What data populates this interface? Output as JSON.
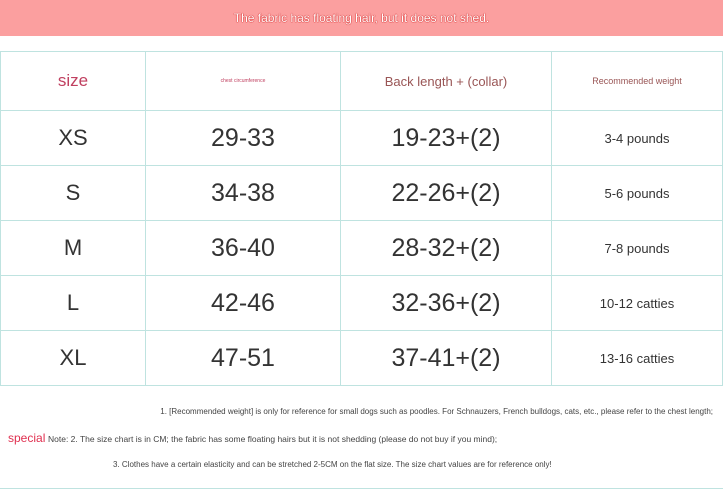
{
  "banner": "The fabric has floating hair, but it does not shed.",
  "headers": [
    "size",
    "chest circumference",
    "Back length + (collar)",
    "Recommended weight"
  ],
  "rows": [
    [
      "XS",
      "29-33",
      "19-23+(2)",
      "3-4 pounds"
    ],
    [
      "S",
      "34-38",
      "22-26+(2)",
      "5-6 pounds"
    ],
    [
      "M",
      "36-40",
      "28-32+(2)",
      "7-8 pounds"
    ],
    [
      "L",
      "42-46",
      "32-36+(2)",
      "10-12 catties"
    ],
    [
      "XL",
      "47-51",
      "37-41+(2)",
      "13-16 catties"
    ]
  ],
  "notes": {
    "special": "special",
    "n1": "1. [Recommended weight] is only for reference for small dogs such as poodles. For Schnauzers, French bulldogs, cats, etc., please refer to the chest length;",
    "n2": "Note: 2. The size chart is in CM; the fabric has some floating hairs but it is not shedding (please do not buy if you mind);",
    "n3": "3. Clothes have a certain elasticity and can be stretched 2-5CM on the flat size. The size chart values are for reference only!"
  }
}
